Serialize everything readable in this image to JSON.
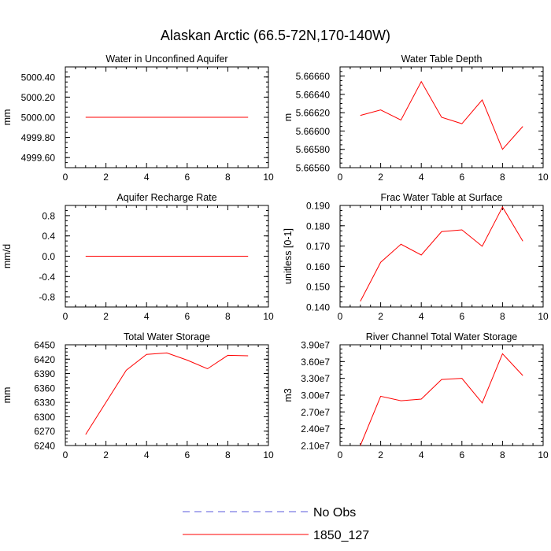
{
  "figure": {
    "title": "Alaskan Arctic (66.5-72N,170-140W)"
  },
  "colors": {
    "model_line": "#ff0000",
    "obs_line": "#5a5adc",
    "axis": "#000000"
  },
  "legend": {
    "placement": "bottom-center",
    "entries": [
      {
        "label": "No Obs",
        "style": "dashed",
        "color": "#5a5adc"
      },
      {
        "label": "1850_127",
        "style": "solid",
        "color": "#ff0000"
      }
    ]
  },
  "chart_data": [
    {
      "type": "line",
      "title": "Water in Unconfined Aquifer",
      "xlabel": "",
      "ylabel": "mm",
      "xlim": [
        0,
        10
      ],
      "ylim": [
        4999.5,
        5000.5
      ],
      "xticks": [
        "0",
        "2",
        "4",
        "6",
        "8",
        "10"
      ],
      "yticks": [
        "4999.60",
        "4999.80",
        "5000.00",
        "5000.20",
        "5000.40"
      ],
      "grid": false,
      "series": [
        {
          "name": "1850_127",
          "x": [
            1,
            2,
            3,
            4,
            5,
            6,
            7,
            8,
            9
          ],
          "y": [
            5000,
            5000,
            5000,
            5000,
            5000,
            5000,
            5000,
            5000,
            5000
          ]
        }
      ]
    },
    {
      "type": "line",
      "title": "Water Table Depth",
      "xlabel": "",
      "ylabel": "m",
      "xlim": [
        0,
        10
      ],
      "ylim": [
        5.6656,
        5.6667
      ],
      "xticks": [
        "0",
        "2",
        "4",
        "6",
        "8",
        "10"
      ],
      "yticks": [
        "5.66560",
        "5.66580",
        "5.66600",
        "5.66620",
        "5.66640",
        "5.66660"
      ],
      "grid": false,
      "series": [
        {
          "name": "1850_127",
          "x": [
            1,
            2,
            3,
            4,
            5,
            6,
            7,
            8,
            9
          ],
          "y": [
            5.66617,
            5.66623,
            5.66612,
            5.66654,
            5.66615,
            5.66608,
            5.66634,
            5.6658,
            5.66605
          ]
        }
      ]
    },
    {
      "type": "line",
      "title": "Aquifer Recharge Rate",
      "xlabel": "",
      "ylabel": "mm/d",
      "xlim": [
        0,
        10
      ],
      "ylim": [
        -1,
        1
      ],
      "xticks": [
        "0",
        "2",
        "4",
        "6",
        "8",
        "10"
      ],
      "yticks": [
        "-0.8",
        "-0.4",
        "0.0",
        "0.4",
        "0.8"
      ],
      "grid": false,
      "series": [
        {
          "name": "1850_127",
          "x": [
            1,
            2,
            3,
            4,
            5,
            6,
            7,
            8,
            9
          ],
          "y": [
            0,
            0,
            0,
            0,
            0,
            0,
            0,
            0,
            0
          ]
        }
      ]
    },
    {
      "type": "line",
      "title": "Frac Water Table at Surface",
      "xlabel": "",
      "ylabel": "unitless [0-1]",
      "xlim": [
        0,
        10
      ],
      "ylim": [
        0.14,
        0.19
      ],
      "xticks": [
        "0",
        "2",
        "4",
        "6",
        "8",
        "10"
      ],
      "yticks": [
        "0.140",
        "0.150",
        "0.160",
        "0.170",
        "0.180",
        "0.190"
      ],
      "grid": false,
      "series": [
        {
          "name": "1850_127",
          "x": [
            1,
            2,
            3,
            4,
            5,
            6,
            7,
            8,
            9
          ],
          "y": [
            0.1428,
            0.162,
            0.1709,
            0.1656,
            0.1771,
            0.178,
            0.1699,
            0.1892,
            0.1724
          ]
        }
      ]
    },
    {
      "type": "line",
      "title": "Total Water Storage",
      "xlabel": "",
      "ylabel": "mm",
      "xlim": [
        0,
        10
      ],
      "ylim": [
        6240,
        6450
      ],
      "xticks": [
        "0",
        "2",
        "4",
        "6",
        "8",
        "10"
      ],
      "yticks": [
        "6240",
        "6270",
        "6300",
        "6330",
        "6360",
        "6390",
        "6420",
        "6450"
      ],
      "grid": false,
      "series": [
        {
          "name": "1850_127",
          "x": [
            1,
            2,
            3,
            4,
            5,
            6,
            7,
            8,
            9
          ],
          "y": [
            6263,
            6330,
            6397,
            6430,
            6433,
            6418,
            6400,
            6428,
            6427
          ]
        }
      ]
    },
    {
      "type": "line",
      "title": "River Channel Total Water Storage",
      "xlabel": "",
      "ylabel": "m3",
      "xlim": [
        0,
        10
      ],
      "ylim": [
        21000000,
        39000000
      ],
      "xticks": [
        "0",
        "2",
        "4",
        "6",
        "8",
        "10"
      ],
      "yticks": [
        "2.10e7",
        "2.40e7",
        "2.70e7",
        "3.00e7",
        "3.30e7",
        "3.60e7",
        "3.90e7"
      ],
      "grid": false,
      "series": [
        {
          "name": "1850_127",
          "x": [
            1,
            2,
            3,
            4,
            5,
            6,
            7,
            8,
            9
          ],
          "y": [
            21000000,
            29800000,
            29000000,
            29300000,
            32800000,
            33000000,
            28600000,
            37400000,
            33500000
          ]
        }
      ]
    }
  ]
}
